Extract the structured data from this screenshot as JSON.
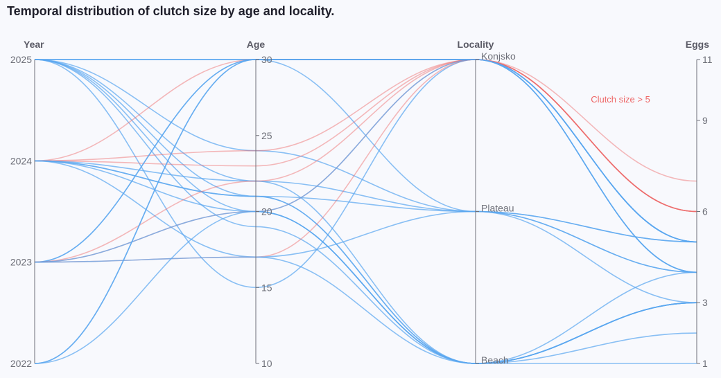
{
  "chart_data": {
    "type": "parallel",
    "title": "Temporal distribution of clutch size by age and locality.",
    "annotation": "Clutch size > 5",
    "highlight_color": "#ee6666",
    "base_color": "#5aa7ef",
    "axes": [
      {
        "key": "year",
        "name": "Year",
        "type": "category",
        "categories": [
          "2022",
          "2023",
          "2024",
          "2025"
        ]
      },
      {
        "key": "age",
        "name": "Age",
        "type": "value",
        "min": 10,
        "max": 30,
        "ticks": [
          10,
          15,
          20,
          25,
          30
        ]
      },
      {
        "key": "locality",
        "name": "Locality",
        "type": "category",
        "categories": [
          "Beach",
          "Plateau",
          "Konjsko"
        ]
      },
      {
        "key": "eggs",
        "name": "Eggs",
        "type": "value",
        "min": 1,
        "max": 11,
        "ticks": [
          1,
          3,
          6,
          9,
          11
        ]
      }
    ],
    "records": [
      {
        "year": "2025",
        "age": 30,
        "locality": "Konjsko",
        "eggs": 5
      },
      {
        "year": "2025",
        "age": 30,
        "locality": "Konjsko",
        "eggs": 4
      },
      {
        "year": "2025",
        "age": 30,
        "locality": "Plateau",
        "eggs": 5
      },
      {
        "year": "2025",
        "age": 24,
        "locality": "Plateau",
        "eggs": 4
      },
      {
        "year": "2025",
        "age": 22,
        "locality": "Beach",
        "eggs": 3
      },
      {
        "year": "2025",
        "age": 21,
        "locality": "Beach",
        "eggs": 3
      },
      {
        "year": "2025",
        "age": 20,
        "locality": "Beach",
        "eggs": 2
      },
      {
        "year": "2025",
        "age": 19,
        "locality": "Beach",
        "eggs": 1
      },
      {
        "year": "2025",
        "age": 15,
        "locality": "Konjsko",
        "eggs": 5
      },
      {
        "year": "2024",
        "age": 30,
        "locality": "Konjsko",
        "eggs": 7
      },
      {
        "year": "2024",
        "age": 24,
        "locality": "Konjsko",
        "eggs": 6
      },
      {
        "year": "2024",
        "age": 23,
        "locality": "Konjsko",
        "eggs": 6
      },
      {
        "year": "2024",
        "age": 22,
        "locality": "Plateau",
        "eggs": 5
      },
      {
        "year": "2024",
        "age": 21,
        "locality": "Plateau",
        "eggs": 4
      },
      {
        "year": "2024",
        "age": 21,
        "locality": "Beach",
        "eggs": 3
      },
      {
        "year": "2024",
        "age": 20,
        "locality": "Beach",
        "eggs": 4
      },
      {
        "year": "2024",
        "age": 17,
        "locality": "Beach",
        "eggs": 3
      },
      {
        "year": "2023",
        "age": 30,
        "locality": "Konjsko",
        "eggs": 5
      },
      {
        "year": "2023",
        "age": 30,
        "locality": "Konjsko",
        "eggs": 4
      },
      {
        "year": "2023",
        "age": 22,
        "locality": "Konjsko",
        "eggs": 6
      },
      {
        "year": "2023",
        "age": 20,
        "locality": "Konjsko",
        "eggs": 6
      },
      {
        "year": "2023",
        "age": 17,
        "locality": "Konjsko",
        "eggs": 6
      },
      {
        "year": "2023",
        "age": 17,
        "locality": "Plateau",
        "eggs": 3
      },
      {
        "year": "2023",
        "age": 20,
        "locality": "Beach",
        "eggs": 3
      },
      {
        "year": "2022",
        "age": 30,
        "locality": "Konjsko",
        "eggs": 5
      },
      {
        "year": "2022",
        "age": 30,
        "locality": "Konjsko",
        "eggs": 4
      },
      {
        "year": "2022",
        "age": 20,
        "locality": "Konjsko",
        "eggs": 5
      }
    ]
  }
}
